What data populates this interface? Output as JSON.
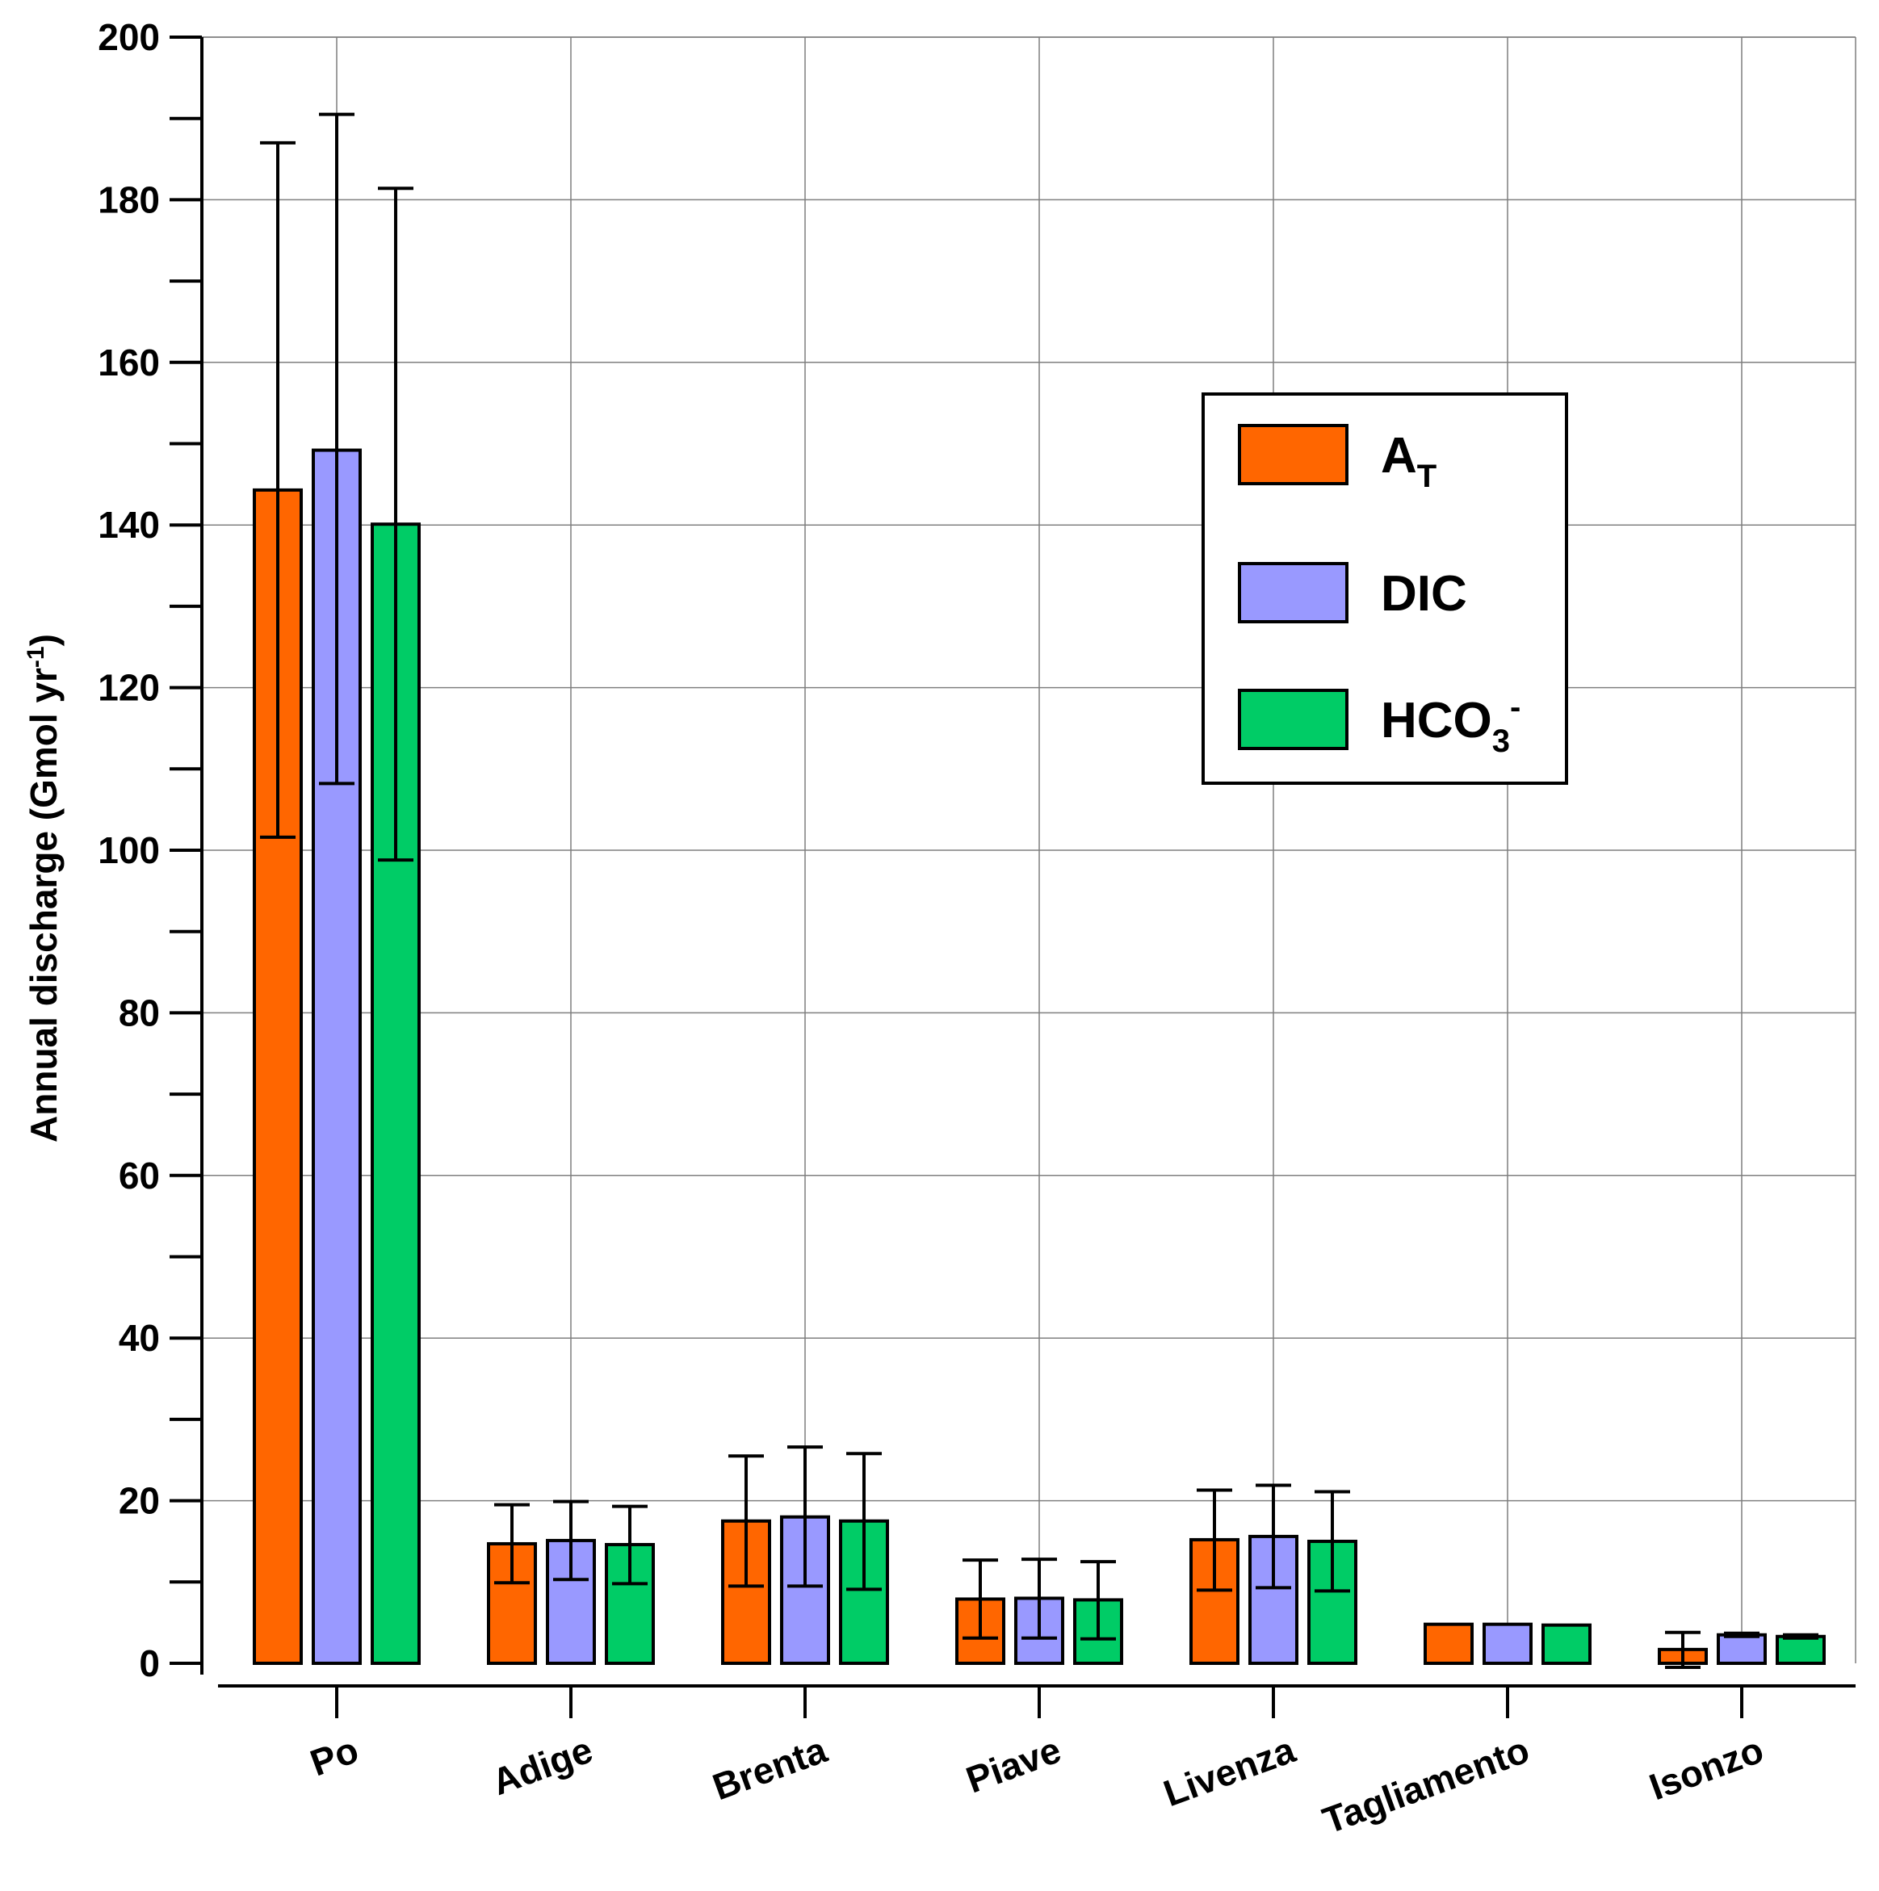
{
  "chart_data": {
    "type": "bar",
    "title": "",
    "xlabel": "",
    "ylabel": "Annual discharge (Gmol yr",
    "ylabel_sup": "-1",
    "ylabel_close": ")",
    "ylim": [
      0,
      200
    ],
    "yticks": [
      0,
      20,
      40,
      60,
      80,
      100,
      120,
      140,
      160,
      180,
      200
    ],
    "grid": true,
    "legend_position": "upper-right",
    "categories": [
      "Po",
      "Adige",
      "Brenta",
      "Piave",
      "Livenza",
      "Tagliamento",
      "Isonzo"
    ],
    "series": [
      {
        "name": "A",
        "name_sub": "T",
        "color": "#ff6600",
        "values": [
          144.3,
          14.7,
          17.5,
          7.9,
          15.2,
          4.8,
          1.7
        ],
        "err_low": [
          101.6,
          9.9,
          9.5,
          3.1,
          9.0,
          4.8,
          -0.5
        ],
        "err_high": [
          187.0,
          19.5,
          25.5,
          12.7,
          21.3,
          4.8,
          3.8
        ]
      },
      {
        "name": "DIC",
        "name_sub": "",
        "color": "#9999ff",
        "values": [
          149.2,
          15.1,
          18.0,
          8.0,
          15.6,
          4.8,
          3.5
        ],
        "err_low": [
          108.2,
          10.3,
          9.5,
          3.1,
          9.3,
          4.8,
          3.3
        ],
        "err_high": [
          190.5,
          19.9,
          26.6,
          12.8,
          21.9,
          4.8,
          3.7
        ]
      },
      {
        "name": "HCO",
        "name_sub": "3",
        "name_sup": "-",
        "color": "#00cc66",
        "values": [
          140.1,
          14.6,
          17.5,
          7.8,
          15.0,
          4.7,
          3.3
        ],
        "err_low": [
          98.8,
          9.8,
          9.1,
          3.0,
          8.9,
          4.7,
          3.1
        ],
        "err_high": [
          181.4,
          19.3,
          25.8,
          12.5,
          21.1,
          4.7,
          3.5
        ]
      }
    ]
  }
}
